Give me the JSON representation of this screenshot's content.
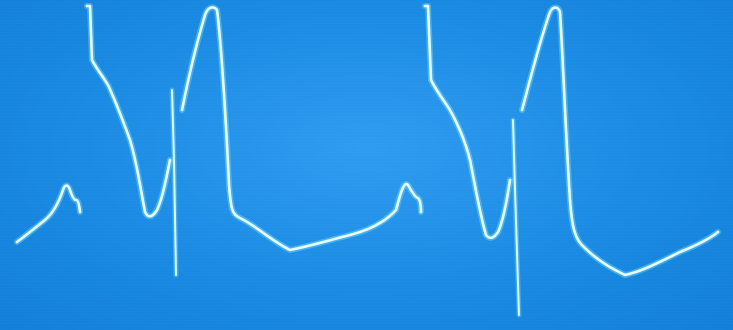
{
  "display": {
    "background": "#1e8fe6",
    "trace_color": "#e8ffff",
    "glow_color": "#8ff0ff"
  }
}
